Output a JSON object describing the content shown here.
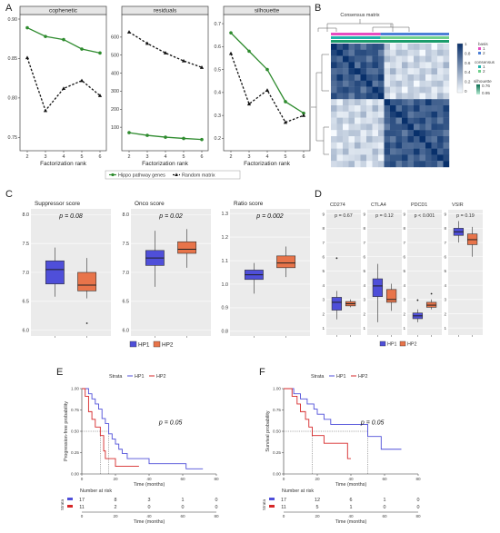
{
  "panels": {
    "A": "A",
    "B": "B",
    "C": "C",
    "D": "D",
    "E": "E",
    "F": "F"
  },
  "colors": {
    "hippo": "#2e8b2e",
    "random": "#111111",
    "hp1": "#4f4fd9",
    "hp2": "#e8744a",
    "heat_dark": "#08306b",
    "heat_light": "#f7fbff",
    "basis1": "#e64bc0",
    "basis2": "#4b7fd6",
    "cons1": "#20b2aa",
    "cons2": "#6fd08c"
  },
  "chart_data": [
    {
      "id": "A1",
      "type": "line",
      "title": "cophenetic",
      "xlabel": "Factorization rank",
      "ylabel": "",
      "x": [
        2,
        3,
        4,
        5,
        6
      ],
      "xlim": [
        2,
        6
      ],
      "ylim": [
        0.74,
        0.9
      ],
      "yticks": [
        0.75,
        0.8,
        0.85,
        0.9
      ],
      "ytick_labels": [
        "0.75",
        "0.80",
        "0.85",
        "0.90"
      ],
      "series": [
        {
          "name": "Hippo pathway genes",
          "values": [
            0.889,
            0.878,
            0.874,
            0.862,
            0.857
          ]
        },
        {
          "name": "Random matrix",
          "values": [
            0.851,
            0.784,
            0.812,
            0.822,
            0.803
          ]
        }
      ]
    },
    {
      "id": "A2",
      "type": "line",
      "title": "residuals",
      "xlabel": "Factorization rank",
      "ylabel": "",
      "x": [
        2,
        3,
        4,
        5,
        6
      ],
      "xlim": [
        2,
        6
      ],
      "ylim": [
        0,
        700
      ],
      "yticks": [
        100,
        200,
        300,
        400,
        500,
        600
      ],
      "ytick_labels": [
        "100",
        "200",
        "300",
        "400",
        "500",
        "600"
      ],
      "series": [
        {
          "name": "Hippo pathway genes",
          "values": [
            70,
            55,
            45,
            38,
            32
          ]
        },
        {
          "name": "Random matrix",
          "values": [
            628,
            565,
            512,
            468,
            432
          ]
        }
      ]
    },
    {
      "id": "A3",
      "type": "line",
      "title": "silhouette",
      "xlabel": "Factorization rank",
      "ylabel": "",
      "x": [
        2,
        3,
        4,
        5,
        6
      ],
      "xlim": [
        2,
        6
      ],
      "ylim": [
        0.17,
        0.72
      ],
      "yticks": [
        0.2,
        0.3,
        0.4,
        0.5,
        0.6,
        0.7
      ],
      "ytick_labels": [
        "0.2",
        "0.3",
        "0.4",
        "0.5",
        "0.6",
        "0.7"
      ],
      "series": [
        {
          "name": "Hippo pathway genes",
          "values": [
            0.66,
            0.58,
            0.5,
            0.36,
            0.31
          ]
        },
        {
          "name": "Random matrix",
          "values": [
            0.57,
            0.35,
            0.41,
            0.27,
            0.3
          ]
        }
      ]
    },
    {
      "id": "B",
      "type": "heatmap",
      "title": "Consensus matrix",
      "legend": {
        "basis_title": "basis",
        "basis_levels": [
          "1",
          "2"
        ],
        "consensus_title": "consensus",
        "consensus_levels": [
          "1",
          "2"
        ],
        "silhouette_title": "silhouette",
        "silhouette_ticks": [
          "0.76",
          "0.95"
        ],
        "scale_ticks": [
          "1",
          "0.8",
          "0.6",
          "0.4",
          "0.2",
          "0"
        ]
      }
    },
    {
      "id": "C1",
      "type": "box",
      "title": "Suppressor score",
      "pvalue": "p = 0.08",
      "ylim": [
        5.9,
        8.1
      ],
      "yticks": [
        6.0,
        6.5,
        7.0,
        7.5,
        8.0
      ],
      "ytick_labels": [
        "6.0",
        "6.5",
        "7.0",
        "7.5",
        "8.0"
      ],
      "groups": [
        {
          "name": "HP1",
          "min": 6.58,
          "q1": 6.8,
          "median": 7.05,
          "q3": 7.2,
          "max": 7.43,
          "outliers": []
        },
        {
          "name": "HP2",
          "min": 6.55,
          "q1": 6.68,
          "median": 6.78,
          "q3": 7.0,
          "max": 7.25,
          "outliers": [
            6.12
          ]
        }
      ]
    },
    {
      "id": "C2",
      "type": "box",
      "title": "Onco score",
      "pvalue": "p = 0.02",
      "ylim": [
        5.9,
        8.1
      ],
      "yticks": [
        6.0,
        6.5,
        7.0,
        7.5,
        8.0
      ],
      "ytick_labels": [
        "6.0",
        "6.5",
        "7.0",
        "7.5",
        "8.0"
      ],
      "groups": [
        {
          "name": "HP1",
          "min": 6.75,
          "q1": 7.12,
          "median": 7.25,
          "q3": 7.38,
          "max": 7.72,
          "outliers": []
        },
        {
          "name": "HP2",
          "min": 7.08,
          "q1": 7.33,
          "median": 7.4,
          "q3": 7.53,
          "max": 7.75,
          "outliers": []
        }
      ]
    },
    {
      "id": "C3",
      "type": "box",
      "title": "Ratio score",
      "pvalue": "p = 0.002",
      "ylim": [
        0.78,
        1.32
      ],
      "yticks": [
        0.8,
        0.9,
        1.0,
        1.1,
        1.2,
        1.3
      ],
      "ytick_labels": [
        "0.8",
        "0.9",
        "1.0",
        "1.1",
        "1.2",
        "1.3"
      ],
      "groups": [
        {
          "name": "HP1",
          "min": 0.96,
          "q1": 1.02,
          "median": 1.04,
          "q3": 1.06,
          "max": 1.09,
          "outliers": []
        },
        {
          "name": "HP2",
          "min": 1.03,
          "q1": 1.07,
          "median": 1.09,
          "q3": 1.12,
          "max": 1.16,
          "outliers": []
        }
      ]
    },
    {
      "id": "D1",
      "type": "box",
      "title": "CD274",
      "pvalue": "p = 0.67",
      "ylim": [
        0.5,
        9.3
      ],
      "yticks": [
        1,
        2,
        3,
        4,
        5,
        6,
        7,
        8,
        9
      ],
      "ytick_labels": [
        "1",
        "2",
        "3",
        "4",
        "5",
        "6",
        "7",
        "8",
        "9"
      ],
      "groups": [
        {
          "name": "HP1",
          "min": 1.6,
          "q1": 2.25,
          "median": 2.8,
          "q3": 3.15,
          "max": 3.6,
          "outliers": [
            5.9
          ]
        },
        {
          "name": "HP2",
          "min": 2.45,
          "q1": 2.55,
          "median": 2.7,
          "q3": 2.85,
          "max": 3.0,
          "outliers": []
        }
      ]
    },
    {
      "id": "D2",
      "type": "box",
      "title": "CTLA4",
      "pvalue": "p = 0.12",
      "ylim": [
        0.5,
        9.3
      ],
      "yticks": [
        1,
        2,
        3,
        4,
        5,
        6,
        7,
        8,
        9
      ],
      "ytick_labels": [
        "1",
        "2",
        "3",
        "4",
        "5",
        "6",
        "7",
        "8",
        "9"
      ],
      "groups": [
        {
          "name": "HP1",
          "min": 1.4,
          "q1": 3.2,
          "median": 3.95,
          "q3": 4.45,
          "max": 5.5,
          "outliers": []
        },
        {
          "name": "HP2",
          "min": 2.2,
          "q1": 2.8,
          "median": 3.0,
          "q3": 3.7,
          "max": 4.1,
          "outliers": []
        }
      ]
    },
    {
      "id": "D3",
      "type": "box",
      "title": "PDCD1",
      "pvalue": "p < 0.001",
      "ylim": [
        0.5,
        9.3
      ],
      "yticks": [
        1,
        2,
        3,
        4,
        5,
        6,
        7,
        8,
        9
      ],
      "ytick_labels": [
        "1",
        "2",
        "3",
        "4",
        "5",
        "6",
        "7",
        "8",
        "9"
      ],
      "groups": [
        {
          "name": "HP1",
          "min": 1.4,
          "q1": 1.65,
          "median": 1.85,
          "q3": 2.05,
          "max": 2.3,
          "outliers": [
            2.95
          ]
        },
        {
          "name": "HP2",
          "min": 2.3,
          "q1": 2.45,
          "median": 2.6,
          "q3": 2.8,
          "max": 3.0,
          "outliers": [
            3.4
          ]
        }
      ]
    },
    {
      "id": "D4",
      "type": "box",
      "title": "VSIR",
      "pvalue": "p = 0.19",
      "ylim": [
        0.5,
        9.3
      ],
      "yticks": [
        1,
        2,
        3,
        4,
        5,
        6,
        7,
        8,
        9
      ],
      "ytick_labels": [
        "1",
        "2",
        "3",
        "4",
        "5",
        "6",
        "7",
        "8",
        "9"
      ],
      "groups": [
        {
          "name": "HP1",
          "min": 7.0,
          "q1": 7.5,
          "median": 7.75,
          "q3": 8.0,
          "max": 8.5,
          "outliers": []
        },
        {
          "name": "HP2",
          "min": 6.0,
          "q1": 6.85,
          "median": 7.2,
          "q3": 7.6,
          "max": 8.1,
          "outliers": []
        }
      ]
    },
    {
      "id": "E",
      "type": "survival",
      "strata_label": "Strata",
      "ylabel": "Progression-free probability",
      "xlabel": "Time (months)",
      "pvalue": "p = 0.05",
      "xlim": [
        0,
        80
      ],
      "ylim": [
        0,
        1
      ],
      "xticks": [
        0,
        20,
        40,
        60,
        80
      ],
      "yticks": [
        0,
        0.25,
        0.5,
        0.75,
        1
      ],
      "ytick_labels": [
        "0.00",
        "0.25",
        "0.50",
        "0.75",
        "1.00"
      ],
      "median_lines": [
        11,
        16
      ],
      "series": [
        {
          "name": "HP1",
          "steps": [
            [
              0,
              1
            ],
            [
              4,
              0.94
            ],
            [
              6,
              0.88
            ],
            [
              8,
              0.82
            ],
            [
              10,
              0.76
            ],
            [
              12,
              0.65
            ],
            [
              14,
              0.59
            ],
            [
              16,
              0.47
            ],
            [
              18,
              0.41
            ],
            [
              20,
              0.35
            ],
            [
              22,
              0.29
            ],
            [
              24,
              0.24
            ],
            [
              27,
              0.18
            ],
            [
              40,
              0.12
            ],
            [
              62,
              0.06
            ],
            [
              72,
              0.06
            ]
          ]
        },
        {
          "name": "HP2",
          "steps": [
            [
              0,
              1
            ],
            [
              2,
              0.91
            ],
            [
              4,
              0.73
            ],
            [
              6,
              0.64
            ],
            [
              8,
              0.55
            ],
            [
              11,
              0.45
            ],
            [
              13,
              0.27
            ],
            [
              14,
              0.18
            ],
            [
              20,
              0.09
            ],
            [
              34,
              0.09
            ]
          ]
        }
      ],
      "risk_table": {
        "title": "Number at risk",
        "strata_label": "Strata",
        "times": [
          0,
          20,
          40,
          60,
          80
        ],
        "rows": [
          {
            "name": "HP1",
            "values": [
              17,
              8,
              3,
              1,
              0
            ]
          },
          {
            "name": "HP2",
            "values": [
              11,
              2,
              0,
              0,
              0
            ]
          }
        ]
      }
    },
    {
      "id": "F",
      "type": "survival",
      "strata_label": "Strata",
      "ylabel": "Survival probability",
      "xlabel": "Time (months)",
      "pvalue": "p = 0.05",
      "xlim": [
        0,
        80
      ],
      "ylim": [
        0,
        1
      ],
      "xticks": [
        0,
        20,
        40,
        60,
        80
      ],
      "yticks": [
        0,
        0.25,
        0.5,
        0.75,
        1
      ],
      "ytick_labels": [
        "0.00",
        "0.25",
        "0.50",
        "0.75",
        "1.00"
      ],
      "median_lines": [
        17,
        50
      ],
      "series": [
        {
          "name": "HP1",
          "steps": [
            [
              0,
              1
            ],
            [
              6,
              0.94
            ],
            [
              10,
              0.88
            ],
            [
              14,
              0.82
            ],
            [
              18,
              0.76
            ],
            [
              20,
              0.7
            ],
            [
              24,
              0.64
            ],
            [
              28,
              0.58
            ],
            [
              50,
              0.44
            ],
            [
              58,
              0.29
            ],
            [
              70,
              0.29
            ]
          ]
        },
        {
          "name": "HP2",
          "steps": [
            [
              0,
              1
            ],
            [
              5,
              0.91
            ],
            [
              8,
              0.82
            ],
            [
              10,
              0.73
            ],
            [
              13,
              0.64
            ],
            [
              15,
              0.55
            ],
            [
              17,
              0.45
            ],
            [
              24,
              0.36
            ],
            [
              38,
              0.18
            ],
            [
              40,
              0.18
            ]
          ]
        }
      ],
      "risk_table": {
        "title": "Number at risk",
        "strata_label": "Strata",
        "times": [
          0,
          20,
          40,
          60,
          80
        ],
        "rows": [
          {
            "name": "HP1",
            "values": [
              17,
              12,
              6,
              1,
              0
            ]
          },
          {
            "name": "HP2",
            "values": [
              11,
              5,
              1,
              0,
              0
            ]
          }
        ]
      }
    }
  ],
  "legends": {
    "A": [
      {
        "name": "Hippo pathway genes"
      },
      {
        "name": "Random matrix"
      }
    ],
    "CD": {
      "items": [
        "HP1",
        "HP2"
      ]
    },
    "strata": {
      "title": "Strata",
      "items": [
        "HP1",
        "HP2"
      ]
    }
  }
}
